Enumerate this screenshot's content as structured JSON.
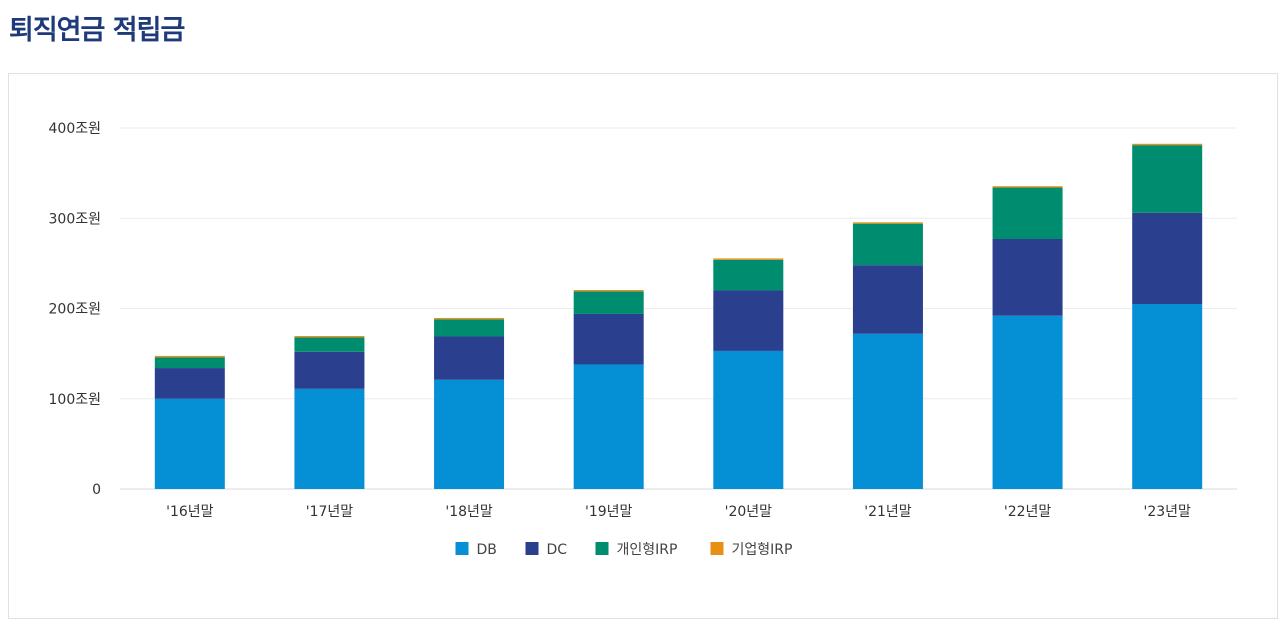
{
  "page": {
    "title": "퇴직연금 적립금"
  },
  "chart_data": {
    "type": "bar",
    "stacked": true,
    "categories": [
      "'16년말",
      "'17년말",
      "'18년말",
      "'19년말",
      "'20년말",
      "'21년말",
      "'22년말",
      "'23년말"
    ],
    "series": [
      {
        "name": "DB",
        "color": "#0590d6",
        "values": [
          100,
          111,
          121,
          138,
          153,
          172,
          192,
          205
        ]
      },
      {
        "name": "DC",
        "color": "#2a3f8d",
        "values": [
          34,
          41,
          48,
          56,
          67,
          76,
          85,
          101
        ]
      },
      {
        "name": "개인형IRP",
        "color": "#008c6e",
        "values": [
          12,
          16,
          19,
          25,
          34,
          46,
          57,
          75
        ]
      },
      {
        "name": "기업형IRP",
        "color": "#e69014",
        "values": [
          1.5,
          1.5,
          1.5,
          1.5,
          1.5,
          1.5,
          1.5,
          1.5
        ]
      }
    ],
    "y_ticks": [
      "0",
      "100조원",
      "200조원",
      "300조원",
      "400조원"
    ],
    "y_tick_values": [
      0,
      100,
      200,
      300,
      400
    ],
    "ylim": [
      0,
      400
    ],
    "grid": true,
    "legend": "bottom-center"
  }
}
